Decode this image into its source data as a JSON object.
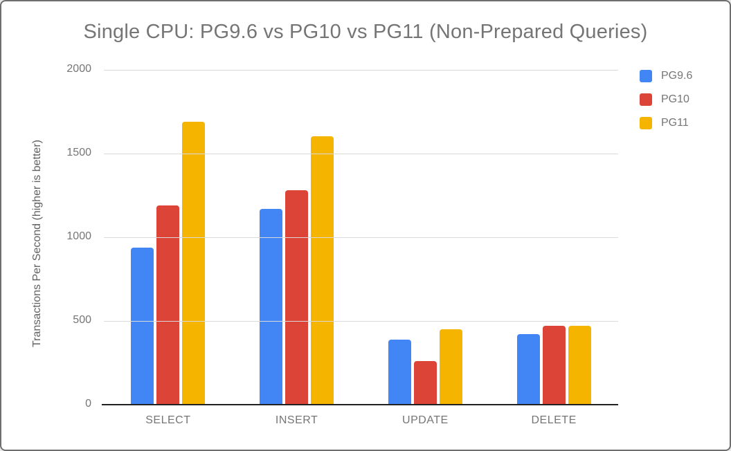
{
  "chart_data": {
    "type": "bar",
    "title": "Single CPU: PG9.6 vs PG10 vs PG11 (Non-Prepared Queries)",
    "xlabel": "",
    "ylabel": "Transactions Per Second (higher is better)",
    "categories": [
      "SELECT",
      "INSERT",
      "UPDATE",
      "DELETE"
    ],
    "series": [
      {
        "name": "PG9.6",
        "color": "#4285F4",
        "values": [
          940,
          1170,
          390,
          420
        ]
      },
      {
        "name": "PG10",
        "color": "#DB4437",
        "values": [
          1190,
          1280,
          260,
          472
        ]
      },
      {
        "name": "PG11",
        "color": "#F4B400",
        "values": [
          1690,
          1605,
          450,
          470
        ]
      }
    ],
    "ylim": [
      0,
      2000
    ],
    "yticks": [
      0,
      500,
      1000,
      1500,
      2000
    ],
    "grid": true,
    "legend_position": "top-right"
  },
  "styles": {
    "background": "#ffffff",
    "border_color": "#6e6e6e",
    "title_color": "#757575",
    "axis_title_color": "#616161",
    "tick_label_color": "#757575",
    "gridline_color": "#dadada",
    "baseline_color": "#212121"
  }
}
